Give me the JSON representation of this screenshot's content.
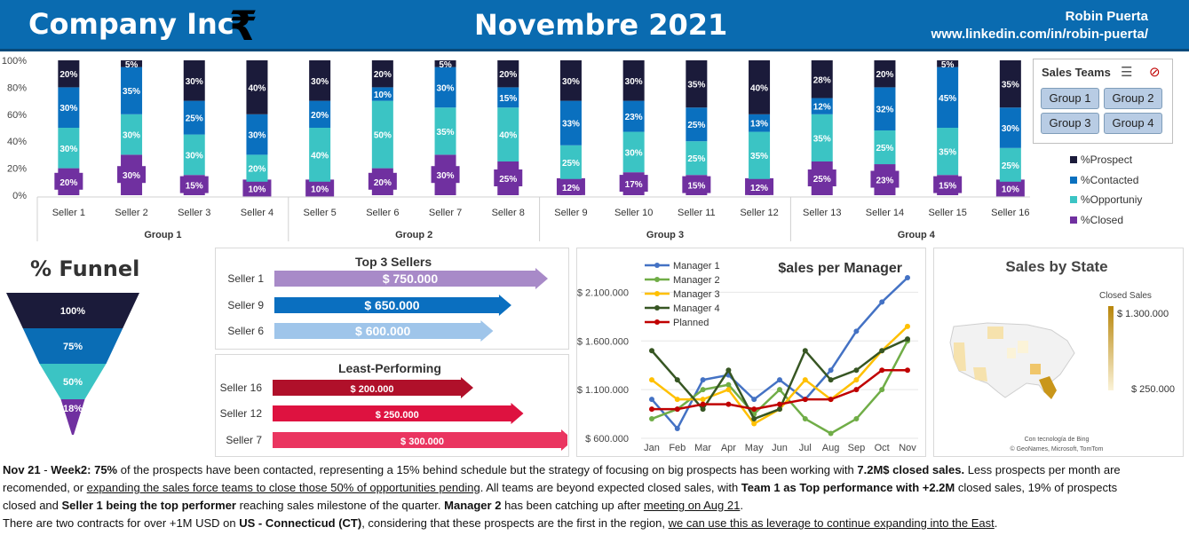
{
  "header": {
    "company": "Company Inc",
    "currency_symbol": "₹",
    "month": "Novembre 2021",
    "author": "Robin Puerta",
    "link": "www.linkedin.com/in/robin-puerta/"
  },
  "colors": {
    "header_bg": "#0a6bb0",
    "prospect": "#1b1b3a",
    "contacted": "#0a70bf",
    "opportunity": "#3bc4c4",
    "closed": "#7030a0"
  },
  "slicer": {
    "title": "Sales Teams",
    "buttons": [
      "Group 1",
      "Group 2",
      "Group 3",
      "Group 4"
    ]
  },
  "chart_data": [
    {
      "type": "bar",
      "stacked": true,
      "title": "",
      "ylim": [
        0,
        100
      ],
      "yticks": [
        "0%",
        "20%",
        "40%",
        "60%",
        "80%",
        "100%"
      ],
      "categories": [
        "Seller 1",
        "Seller 2",
        "Seller 3",
        "Seller 4",
        "Seller 5",
        "Seller 6",
        "Seller 7",
        "Seller 8",
        "Seller 9",
        "Seller 10",
        "Seller 11",
        "Seller 12",
        "Seller 13",
        "Seller 14",
        "Seller 15",
        "Seller 16"
      ],
      "groups": [
        {
          "name": "Group 1",
          "sellers": 4
        },
        {
          "name": "Group 2",
          "sellers": 4
        },
        {
          "name": "Group 3",
          "sellers": 4
        },
        {
          "name": "Group 4",
          "sellers": 4
        }
      ],
      "series": [
        {
          "name": "%Closed",
          "values": [
            20,
            30,
            15,
            10,
            10,
            20,
            30,
            25,
            12,
            17,
            15,
            12,
            25,
            23,
            15,
            10
          ]
        },
        {
          "name": "%Opportuniy",
          "values": [
            30,
            30,
            30,
            20,
            40,
            50,
            35,
            40,
            25,
            30,
            25,
            35,
            35,
            25,
            35,
            25
          ]
        },
        {
          "name": "%Contacted",
          "values": [
            30,
            35,
            25,
            30,
            20,
            10,
            30,
            15,
            33,
            23,
            25,
            13,
            12,
            32,
            45,
            30
          ]
        },
        {
          "name": "%Prospect",
          "values": [
            20,
            5,
            30,
            40,
            30,
            20,
            5,
            20,
            30,
            30,
            35,
            40,
            28,
            20,
            5,
            35
          ]
        }
      ],
      "legend": [
        "%Prospect",
        "%Contacted",
        "%Opportuniy",
        "%Closed"
      ]
    },
    {
      "type": "funnel",
      "title": "% Funnel",
      "categories": [
        "Prospect",
        "Contacted",
        "Opportunity",
        "Closed"
      ],
      "values": [
        100,
        75,
        50,
        18
      ],
      "labels": [
        "100%",
        "75%",
        "50%",
        "18%"
      ]
    },
    {
      "type": "bar",
      "title": "Top 3 Sellers",
      "categories": [
        "Seller 1",
        "Seller 9",
        "Seller 6"
      ],
      "values": [
        750000,
        650000,
        600000
      ],
      "labels": [
        "$ 750.000",
        "$ 650.000",
        "$ 600.000"
      ]
    },
    {
      "type": "bar",
      "title": "Least-Performing",
      "categories": [
        "Seller 16",
        "Seller 12",
        "Seller 7"
      ],
      "values": [
        200000,
        250000,
        300000
      ],
      "labels": [
        "$ 200.000",
        "$ 250.000",
        "$ 300.000"
      ]
    },
    {
      "type": "line",
      "title": "$ales per Manager",
      "x": [
        "Jan",
        "Feb",
        "Mar",
        "Apr",
        "May",
        "Jun",
        "Jul",
        "Aug",
        "Sep",
        "Oct",
        "Nov"
      ],
      "ylim": [
        600000,
        2350000
      ],
      "yticks": [
        "$ 600.000",
        "$ 1.100.000",
        "$ 1.600.000",
        "$ 2.100.000"
      ],
      "series": [
        {
          "name": "Manager 1",
          "values": [
            1000000,
            700000,
            1200000,
            1250000,
            1000000,
            1200000,
            1000000,
            1300000,
            1700000,
            2000000,
            2250000
          ]
        },
        {
          "name": "Manager 2",
          "values": [
            800000,
            900000,
            1100000,
            1150000,
            850000,
            1100000,
            800000,
            650000,
            800000,
            1100000,
            1600000
          ]
        },
        {
          "name": "Manager 3",
          "values": [
            1200000,
            1000000,
            1000000,
            1100000,
            750000,
            900000,
            1200000,
            1000000,
            1200000,
            1500000,
            1750000
          ]
        },
        {
          "name": "Manager 4",
          "values": [
            1500000,
            1200000,
            900000,
            1300000,
            800000,
            900000,
            1500000,
            1200000,
            1300000,
            1500000,
            1620000
          ]
        },
        {
          "name": "Planned",
          "values": [
            900000,
            900000,
            950000,
            950000,
            900000,
            950000,
            1000000,
            1000000,
            1100000,
            1300000,
            1300000
          ]
        }
      ]
    },
    {
      "type": "map",
      "title": "Sales by State",
      "legend_title": "Closed Sales",
      "legend_max": "$ 1.300.000",
      "legend_min": "$ 250.000",
      "credit1": "Con tecnología de Bing",
      "credit2": "© GeoNames, Microsoft, TomTom"
    }
  ],
  "footer": {
    "l1_a": "Nov 21",
    "l1_b": " - ",
    "l1_c": "Week2: 75%",
    "l1_d": " of the prospects have been contacted, representing a 15% behind schedule but the strategy of focusing on big prospects has been working with ",
    "l1_e": "7.2M$ closed sales.",
    "l1_f": " Less prospects per month are",
    "l2_a": "recomended, or ",
    "l2_b": "expanding the sales force teams to close those 50% of opportunities pending",
    "l2_c": ". All teams are beyond expected closed sales, with ",
    "l2_d": "Team 1 as Top performance with +2.2M",
    "l2_e": " closed sales, 19% of prospects",
    "l3_a": "closed and ",
    "l3_b": "Seller 1 being the top performer",
    "l3_c": " reaching sales milestone of the quarter. ",
    "l3_d": "Manager 2",
    "l3_e": " has been catching up after ",
    "l3_f": "meeting on Aug 21",
    "l3_g": ".",
    "l4_a": "There are two contracts for over +1M USD on ",
    "l4_b": "US - Connecticud (CT)",
    "l4_c": ", considering that these prospects are the first in the region, ",
    "l4_d": "we can use this as leverage to continue expanding into the East",
    "l4_e": "."
  }
}
